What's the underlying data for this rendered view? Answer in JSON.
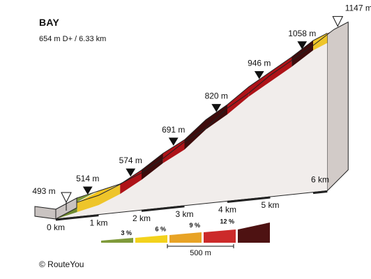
{
  "chart_data": {
    "type": "area",
    "title": "BAY",
    "subtitle": "654 m D+ / 6.33 km",
    "x_unit": "km",
    "y_unit": "m",
    "profile": [
      {
        "x": 0,
        "y": 493,
        "grade": 3
      },
      {
        "x": 0.5,
        "y": 514,
        "grade": 6
      },
      {
        "x": 1.0,
        "y": 535,
        "grade": 6
      },
      {
        "x": 1.5,
        "y": 574,
        "grade": 9
      },
      {
        "x": 2.0,
        "y": 627,
        "grade": 12
      },
      {
        "x": 2.5,
        "y": 691,
        "grade": 9
      },
      {
        "x": 3.0,
        "y": 741,
        "grade": 12
      },
      {
        "x": 3.5,
        "y": 820,
        "grade": 12
      },
      {
        "x": 4.0,
        "y": 877,
        "grade": 9
      },
      {
        "x": 4.5,
        "y": 946,
        "grade": 9
      },
      {
        "x": 5.0,
        "y": 1002,
        "grade": 9
      },
      {
        "x": 5.5,
        "y": 1058,
        "grade": 12
      },
      {
        "x": 6.0,
        "y": 1121,
        "grade": 6
      },
      {
        "x": 6.33,
        "y": 1147,
        "grade": null
      }
    ],
    "elevation_labels": [
      {
        "x": 0,
        "label": "493 m",
        "marker": "start"
      },
      {
        "x": 0.5,
        "label": "514 m",
        "marker": "point"
      },
      {
        "x": 1.5,
        "label": "574 m",
        "marker": "point"
      },
      {
        "x": 2.5,
        "label": "691 m",
        "marker": "point"
      },
      {
        "x": 3.5,
        "label": "820 m",
        "marker": "point"
      },
      {
        "x": 4.5,
        "label": "946 m",
        "marker": "point"
      },
      {
        "x": 5.5,
        "label": "1058 m",
        "marker": "point"
      },
      {
        "x": 6.33,
        "label": "1147 m",
        "marker": "end"
      }
    ],
    "x_ticks": [
      {
        "x": 0,
        "label": "0 km"
      },
      {
        "x": 1,
        "label": "1 km"
      },
      {
        "x": 2,
        "label": "2 km"
      },
      {
        "x": 3,
        "label": "3 km"
      },
      {
        "x": 4,
        "label": "4 km"
      },
      {
        "x": 5,
        "label": "5 km"
      },
      {
        "x": 6,
        "label": "6 km"
      }
    ],
    "legend": {
      "scale_label": "500 m",
      "items": [
        {
          "label": "3 %",
          "color": "#7f9a3a"
        },
        {
          "label": "6 %",
          "color": "#f3d21c"
        },
        {
          "label": "9 %",
          "color": "#e8a325"
        },
        {
          "label": "12 %",
          "color": "#cc2a2a"
        },
        {
          "label": "",
          "color": "#4e1212"
        }
      ]
    },
    "grade_colors": {
      "3": "#7f9a3a",
      "6": "#f3c41c",
      "9": "#d7181f",
      "12": "#4e1010"
    },
    "grade_colors_side": {
      "3": "#6f8a30",
      "6": "#eec52a",
      "9": "#ae1318",
      "12": "#3e0c0c"
    },
    "side_fill": "#e8e2df",
    "shadow_fill": "#d2cbc8",
    "edge_color": "#222222"
  },
  "copyright": "© RouteYou"
}
